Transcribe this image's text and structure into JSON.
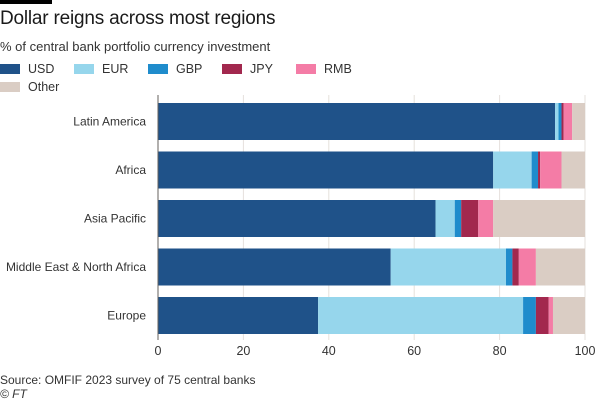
{
  "title": "Dollar reigns across most regions",
  "subtitle": "% of central bank portfolio currency investment",
  "source": "Source: OMFIF 2023 survey of 75 central banks",
  "credit": "© FT",
  "legend": [
    {
      "name": "USD",
      "color": "#1f5289"
    },
    {
      "name": "EUR",
      "color": "#96d6ec"
    },
    {
      "name": "GBP",
      "color": "#1f8ccc"
    },
    {
      "name": "JPY",
      "color": "#a2284e"
    },
    {
      "name": "RMB",
      "color": "#f47ca6"
    },
    {
      "name": "Other",
      "color": "#dacdc4"
    }
  ],
  "chart_data": {
    "type": "bar",
    "orientation": "horizontal",
    "stacked": true,
    "title": "Dollar reigns across most regions",
    "subtitle": "% of central bank portfolio currency investment",
    "xlabel": "",
    "ylabel": "",
    "xlim": [
      0,
      100
    ],
    "xticks": [
      0,
      20,
      40,
      60,
      80,
      100
    ],
    "categories": [
      "Latin America",
      "Africa",
      "Asia Pacific",
      "Middle East & North Africa",
      "Europe"
    ],
    "series": [
      {
        "name": "USD",
        "color": "#1f5289",
        "values": [
          93,
          78.5,
          65,
          54.5,
          37.5
        ]
      },
      {
        "name": "EUR",
        "color": "#96d6ec",
        "values": [
          0.8,
          9,
          4.5,
          27,
          48
        ]
      },
      {
        "name": "GBP",
        "color": "#1f8ccc",
        "values": [
          0.7,
          1.5,
          1.5,
          1.5,
          3
        ]
      },
      {
        "name": "JPY",
        "color": "#a2284e",
        "values": [
          0.5,
          0.5,
          4,
          1.5,
          3
        ]
      },
      {
        "name": "RMB",
        "color": "#f47ca6",
        "values": [
          2,
          5,
          3.5,
          4,
          1
        ]
      },
      {
        "name": "Other",
        "color": "#dacdc4",
        "values": [
          3,
          5.5,
          21.5,
          11.5,
          7.5
        ]
      }
    ]
  }
}
